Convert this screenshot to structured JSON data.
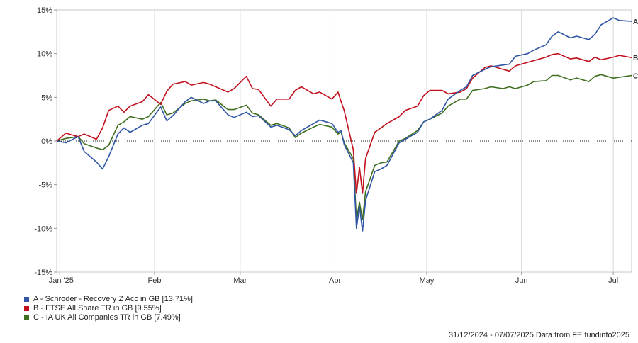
{
  "chart_data": {
    "type": "line",
    "ylabel": "",
    "xlabel": "",
    "ylim": [
      -15,
      15
    ],
    "xlim": [
      "2024-12-31",
      "2025-07-07"
    ],
    "y_ticks": [
      15,
      10,
      5,
      0,
      -5,
      -10,
      -15
    ],
    "y_tick_labels": [
      "15%",
      "10%",
      "5%",
      "0%",
      "-5%",
      "-10%",
      "-15%"
    ],
    "x_ticks": [
      {
        "label": "Jan '25",
        "date": "2025-01-01"
      },
      {
        "label": "Feb",
        "date": "2025-02-01"
      },
      {
        "label": "Mar",
        "date": "2025-03-01"
      },
      {
        "label": "Apr",
        "date": "2025-04-01"
      },
      {
        "label": "May",
        "date": "2025-05-01"
      },
      {
        "label": "Jun",
        "date": "2025-06-01"
      },
      {
        "label": "Jul",
        "date": "2025-07-01"
      }
    ],
    "grid": "vertical at month starts, dotted zero line",
    "x": [
      "2024-12-31",
      "2025-01-03",
      "2025-01-07",
      "2025-01-09",
      "2025-01-13",
      "2025-01-15",
      "2025-01-17",
      "2025-01-20",
      "2025-01-22",
      "2025-01-24",
      "2025-01-28",
      "2025-01-30",
      "2025-02-03",
      "2025-02-05",
      "2025-02-07",
      "2025-02-11",
      "2025-02-13",
      "2025-02-17",
      "2025-02-19",
      "2025-02-21",
      "2025-02-25",
      "2025-02-27",
      "2025-03-03",
      "2025-03-05",
      "2025-03-07",
      "2025-03-11",
      "2025-03-13",
      "2025-03-17",
      "2025-03-19",
      "2025-03-21",
      "2025-03-25",
      "2025-03-27",
      "2025-03-31",
      "2025-04-02",
      "2025-04-03",
      "2025-04-04",
      "2025-04-07",
      "2025-04-08",
      "2025-04-09",
      "2025-04-10",
      "2025-04-11",
      "2025-04-14",
      "2025-04-16",
      "2025-04-18",
      "2025-04-22",
      "2025-04-24",
      "2025-04-28",
      "2025-04-30",
      "2025-05-02",
      "2025-05-06",
      "2025-05-08",
      "2025-05-12",
      "2025-05-14",
      "2025-05-16",
      "2025-05-20",
      "2025-05-22",
      "2025-05-26",
      "2025-05-28",
      "2025-05-30",
      "2025-06-03",
      "2025-06-05",
      "2025-06-09",
      "2025-06-11",
      "2025-06-13",
      "2025-06-17",
      "2025-06-19",
      "2025-06-23",
      "2025-06-25",
      "2025-06-27",
      "2025-07-01",
      "2025-07-03",
      "2025-07-07"
    ],
    "series": [
      {
        "name": "A - Schroder - Recovery Z Acc in GB [13.71%]",
        "end_label": "A",
        "color": "#2f55a4",
        "values": [
          0,
          -0.2,
          0.5,
          -1.2,
          -2.4,
          -3.2,
          -1.8,
          0.8,
          1.5,
          1.0,
          1.8,
          2.0,
          3.9,
          2.3,
          2.9,
          4.5,
          5.0,
          4.3,
          4.6,
          4.6,
          3.0,
          2.7,
          3.3,
          2.8,
          2.9,
          1.6,
          1.8,
          1.3,
          0.6,
          1.2,
          2.0,
          2.4,
          2.0,
          1.0,
          1.2,
          -0.4,
          -2.5,
          -10.0,
          -7.5,
          -10.3,
          -6.8,
          -3.5,
          -3.2,
          -2.8,
          -0.2,
          0.2,
          1.0,
          2.2,
          2.5,
          3.5,
          4.8,
          5.8,
          6.2,
          7.5,
          8.2,
          8.5,
          8.7,
          8.8,
          9.7,
          10.0,
          10.4,
          11.0,
          12.0,
          12.5,
          11.8,
          12.0,
          11.6,
          12.2,
          13.3,
          14.1,
          13.8,
          13.7
        ]
      },
      {
        "name": "B - FTSE All Share TR in GB [9.55%]",
        "end_label": "B",
        "color": "#c1101c",
        "values": [
          0,
          0.9,
          0.5,
          0.8,
          0.2,
          1.5,
          3.5,
          4.0,
          3.3,
          4.0,
          4.5,
          5.3,
          4.2,
          5.7,
          6.5,
          6.8,
          6.4,
          6.7,
          6.5,
          6.2,
          5.6,
          6.0,
          7.4,
          6.0,
          5.9,
          4.0,
          4.8,
          4.8,
          5.8,
          6.2,
          5.4,
          5.6,
          4.8,
          5.6,
          4.5,
          3.5,
          -1.0,
          -6.0,
          -3.0,
          -6.0,
          -2.0,
          1.0,
          1.5,
          2.0,
          2.8,
          3.5,
          4.0,
          5.2,
          5.8,
          5.8,
          5.4,
          5.6,
          6.0,
          7.2,
          8.4,
          8.6,
          8.2,
          8.0,
          8.6,
          9.0,
          9.2,
          9.6,
          9.9,
          10.0,
          9.4,
          9.5,
          9.1,
          9.6,
          9.3,
          9.6,
          9.8,
          9.55
        ]
      },
      {
        "name": "C - IA UK All Companies TR in GB [7.49%]",
        "end_label": "C",
        "color": "#3f6e1f",
        "values": [
          0,
          0.3,
          0.5,
          -0.3,
          -0.8,
          -1.0,
          -0.5,
          1.8,
          2.2,
          2.8,
          2.5,
          2.8,
          4.4,
          3.0,
          3.2,
          4.3,
          4.6,
          4.8,
          4.6,
          4.7,
          3.6,
          3.6,
          4.1,
          3.2,
          3.0,
          1.8,
          2.0,
          1.5,
          0.4,
          0.9,
          1.6,
          1.9,
          1.6,
          0.8,
          1.0,
          -0.2,
          -2.0,
          -9.0,
          -7.0,
          -9.0,
          -5.8,
          -2.8,
          -2.5,
          -2.4,
          0,
          0.3,
          1.2,
          2.2,
          2.5,
          3.2,
          4.0,
          4.8,
          4.8,
          5.8,
          6.0,
          6.2,
          6.0,
          6.2,
          6.0,
          6.4,
          6.8,
          6.9,
          7.5,
          7.5,
          7.0,
          7.2,
          6.8,
          7.4,
          7.6,
          7.2,
          7.3,
          7.49
        ]
      }
    ]
  },
  "footer_text": "31/12/2024 - 07/07/2025 Data from FE fundinfo2025"
}
